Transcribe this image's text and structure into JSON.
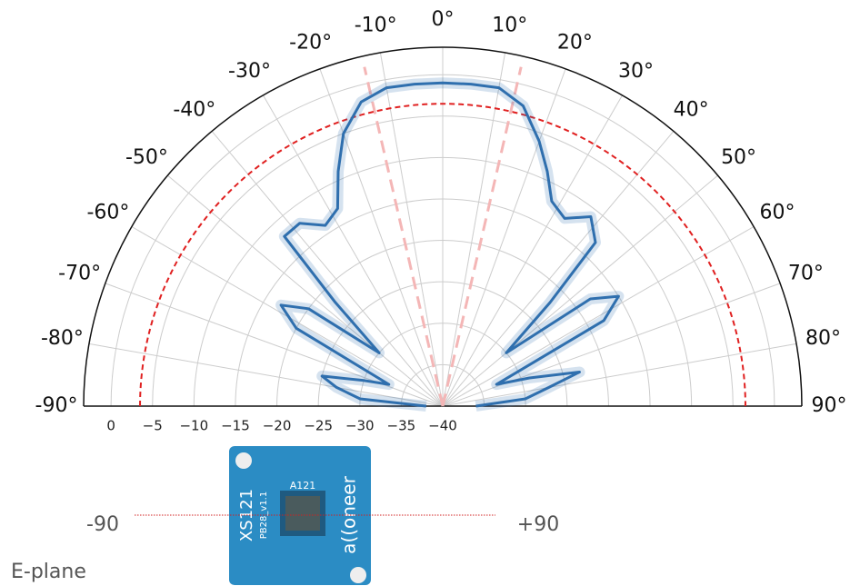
{
  "chart_data": {
    "type": "polar",
    "theta": [
      -90,
      -85,
      -80,
      -76,
      -72,
      -68,
      -62,
      -58,
      -54,
      -50,
      -46,
      -43,
      -38,
      -33,
      -28,
      -24,
      -20,
      -15,
      -10,
      -5,
      0,
      5,
      10,
      15,
      20,
      24,
      28,
      33,
      38,
      43,
      46,
      50,
      54,
      58,
      62,
      68,
      72,
      76,
      80,
      85,
      90
    ],
    "series": [
      {
        "color": "#2f6fae",
        "values": [
          -38,
          -30,
          -27,
          -25,
          -30,
          -33,
          -20,
          -17,
          -20,
          -30,
          -22,
          -12,
          -12,
          -14,
          -13,
          -9,
          -5,
          -2,
          -1,
          -1,
          -1,
          -1,
          -1,
          -2.5,
          -6,
          -9,
          -12,
          -13,
          -11,
          -13,
          -22,
          -30,
          -18,
          -15,
          -18,
          -33,
          -29,
          -23,
          -27,
          -30,
          -36
        ]
      }
    ],
    "thetalim": [
      -90,
      90
    ],
    "thetaticks": [
      {
        "value": -90,
        "label": "-90°"
      },
      {
        "value": -80,
        "label": "-80°"
      },
      {
        "value": -70,
        "label": "-70°"
      },
      {
        "value": -60,
        "label": "-60°"
      },
      {
        "value": -50,
        "label": "-50°"
      },
      {
        "value": -40,
        "label": "-40°"
      },
      {
        "value": -30,
        "label": "-30°"
      },
      {
        "value": -20,
        "label": "-20°"
      },
      {
        "value": -10,
        "label": "-10°"
      },
      {
        "value": 0,
        "label": "0°"
      },
      {
        "value": 10,
        "label": "10°"
      },
      {
        "value": 20,
        "label": "20°"
      },
      {
        "value": 30,
        "label": "30°"
      },
      {
        "value": 40,
        "label": "40°"
      },
      {
        "value": 50,
        "label": "50°"
      },
      {
        "value": 60,
        "label": "60°"
      },
      {
        "value": 70,
        "label": "70°"
      },
      {
        "value": 80,
        "label": "80°"
      },
      {
        "value": 90,
        "label": "90°"
      }
    ],
    "rlim": [
      -40,
      3.3
    ],
    "rticks": [
      0,
      {
        "value": -5,
        "label": "−5"
      },
      {
        "value": -10,
        "label": "−10"
      },
      {
        "value": -15,
        "label": "−15"
      },
      {
        "value": -20,
        "label": "−20"
      },
      {
        "value": -25,
        "label": "−25"
      },
      {
        "value": -30,
        "label": "−30"
      },
      {
        "value": -35,
        "label": "−35"
      },
      {
        "value": -40,
        "label": "−40"
      }
    ],
    "reference_circle": {
      "value": -3.5,
      "color": "#e02020"
    },
    "reference_angles": {
      "values": [
        -13,
        13
      ],
      "color": "#f4b6b6"
    },
    "grid": true,
    "annotations": [
      "-90",
      "+90",
      "E-plane"
    ],
    "board": {
      "model": "XS121",
      "chip": "A121",
      "revision": "PB28_v1.1",
      "brand": "a((oneer"
    }
  }
}
